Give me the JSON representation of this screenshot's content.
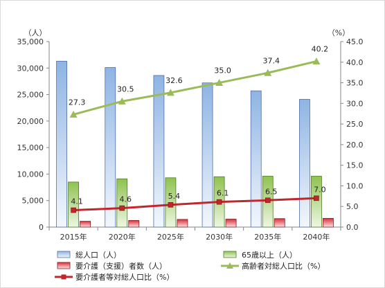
{
  "chart_data": {
    "type": "bar",
    "categories": [
      "2015年",
      "2020年",
      "2025年",
      "2030年",
      "2035年",
      "2040年"
    ],
    "left_axis": {
      "unit_label": "（人）",
      "ylim": [
        0,
        35000
      ],
      "ticks": [
        "0",
        "5,000",
        "10,000",
        "15,000",
        "20,000",
        "25,000",
        "30,000",
        "35,000"
      ]
    },
    "right_axis": {
      "unit_label": "（%）",
      "ylim": [
        0,
        45
      ],
      "ticks": [
        "0.0",
        "5.0",
        "10.0",
        "15.0",
        "20.0",
        "25.0",
        "30.0",
        "35.0",
        "40.0",
        "45.0"
      ]
    },
    "bar_series": [
      {
        "name": "総人口（人）",
        "color_top": "#8eb4e3",
        "color_bottom": "#f3f7fc",
        "border": "#4f6fa8",
        "values": [
          31300,
          30100,
          28600,
          27200,
          25700,
          24100
        ]
      },
      {
        "name": "65歳以上（人）",
        "color_top": "#8fc24f",
        "color_bottom": "#eef7e3",
        "border": "#4e7d22",
        "values": [
          8500,
          9100,
          9300,
          9500,
          9600,
          9600
        ]
      },
      {
        "name": "要介護（支援）者数（人）",
        "color_top": "#d9303a",
        "color_bottom": "#fbe3e4",
        "border": "#8a1b20",
        "values": [
          1100,
          1250,
          1450,
          1500,
          1600,
          1650
        ]
      }
    ],
    "line_series": [
      {
        "name": "高齢者対総人口比（%）",
        "color": "#9bbb59",
        "marker": "triangle",
        "values": [
          27.3,
          30.5,
          32.6,
          35.0,
          37.4,
          40.2
        ],
        "labels": [
          "27.3",
          "30.5",
          "32.6",
          "35.0",
          "37.4",
          "40.2"
        ]
      },
      {
        "name": "要介護者等対総人口比（%）",
        "color": "#c0272d",
        "marker": "square",
        "values": [
          4.1,
          4.6,
          5.4,
          6.1,
          6.5,
          7.0
        ],
        "labels": [
          "4.1",
          "4.6",
          "5.4",
          "6.1",
          "6.5",
          "7.0"
        ]
      }
    ],
    "grid": false,
    "legend_position": "bottom"
  }
}
